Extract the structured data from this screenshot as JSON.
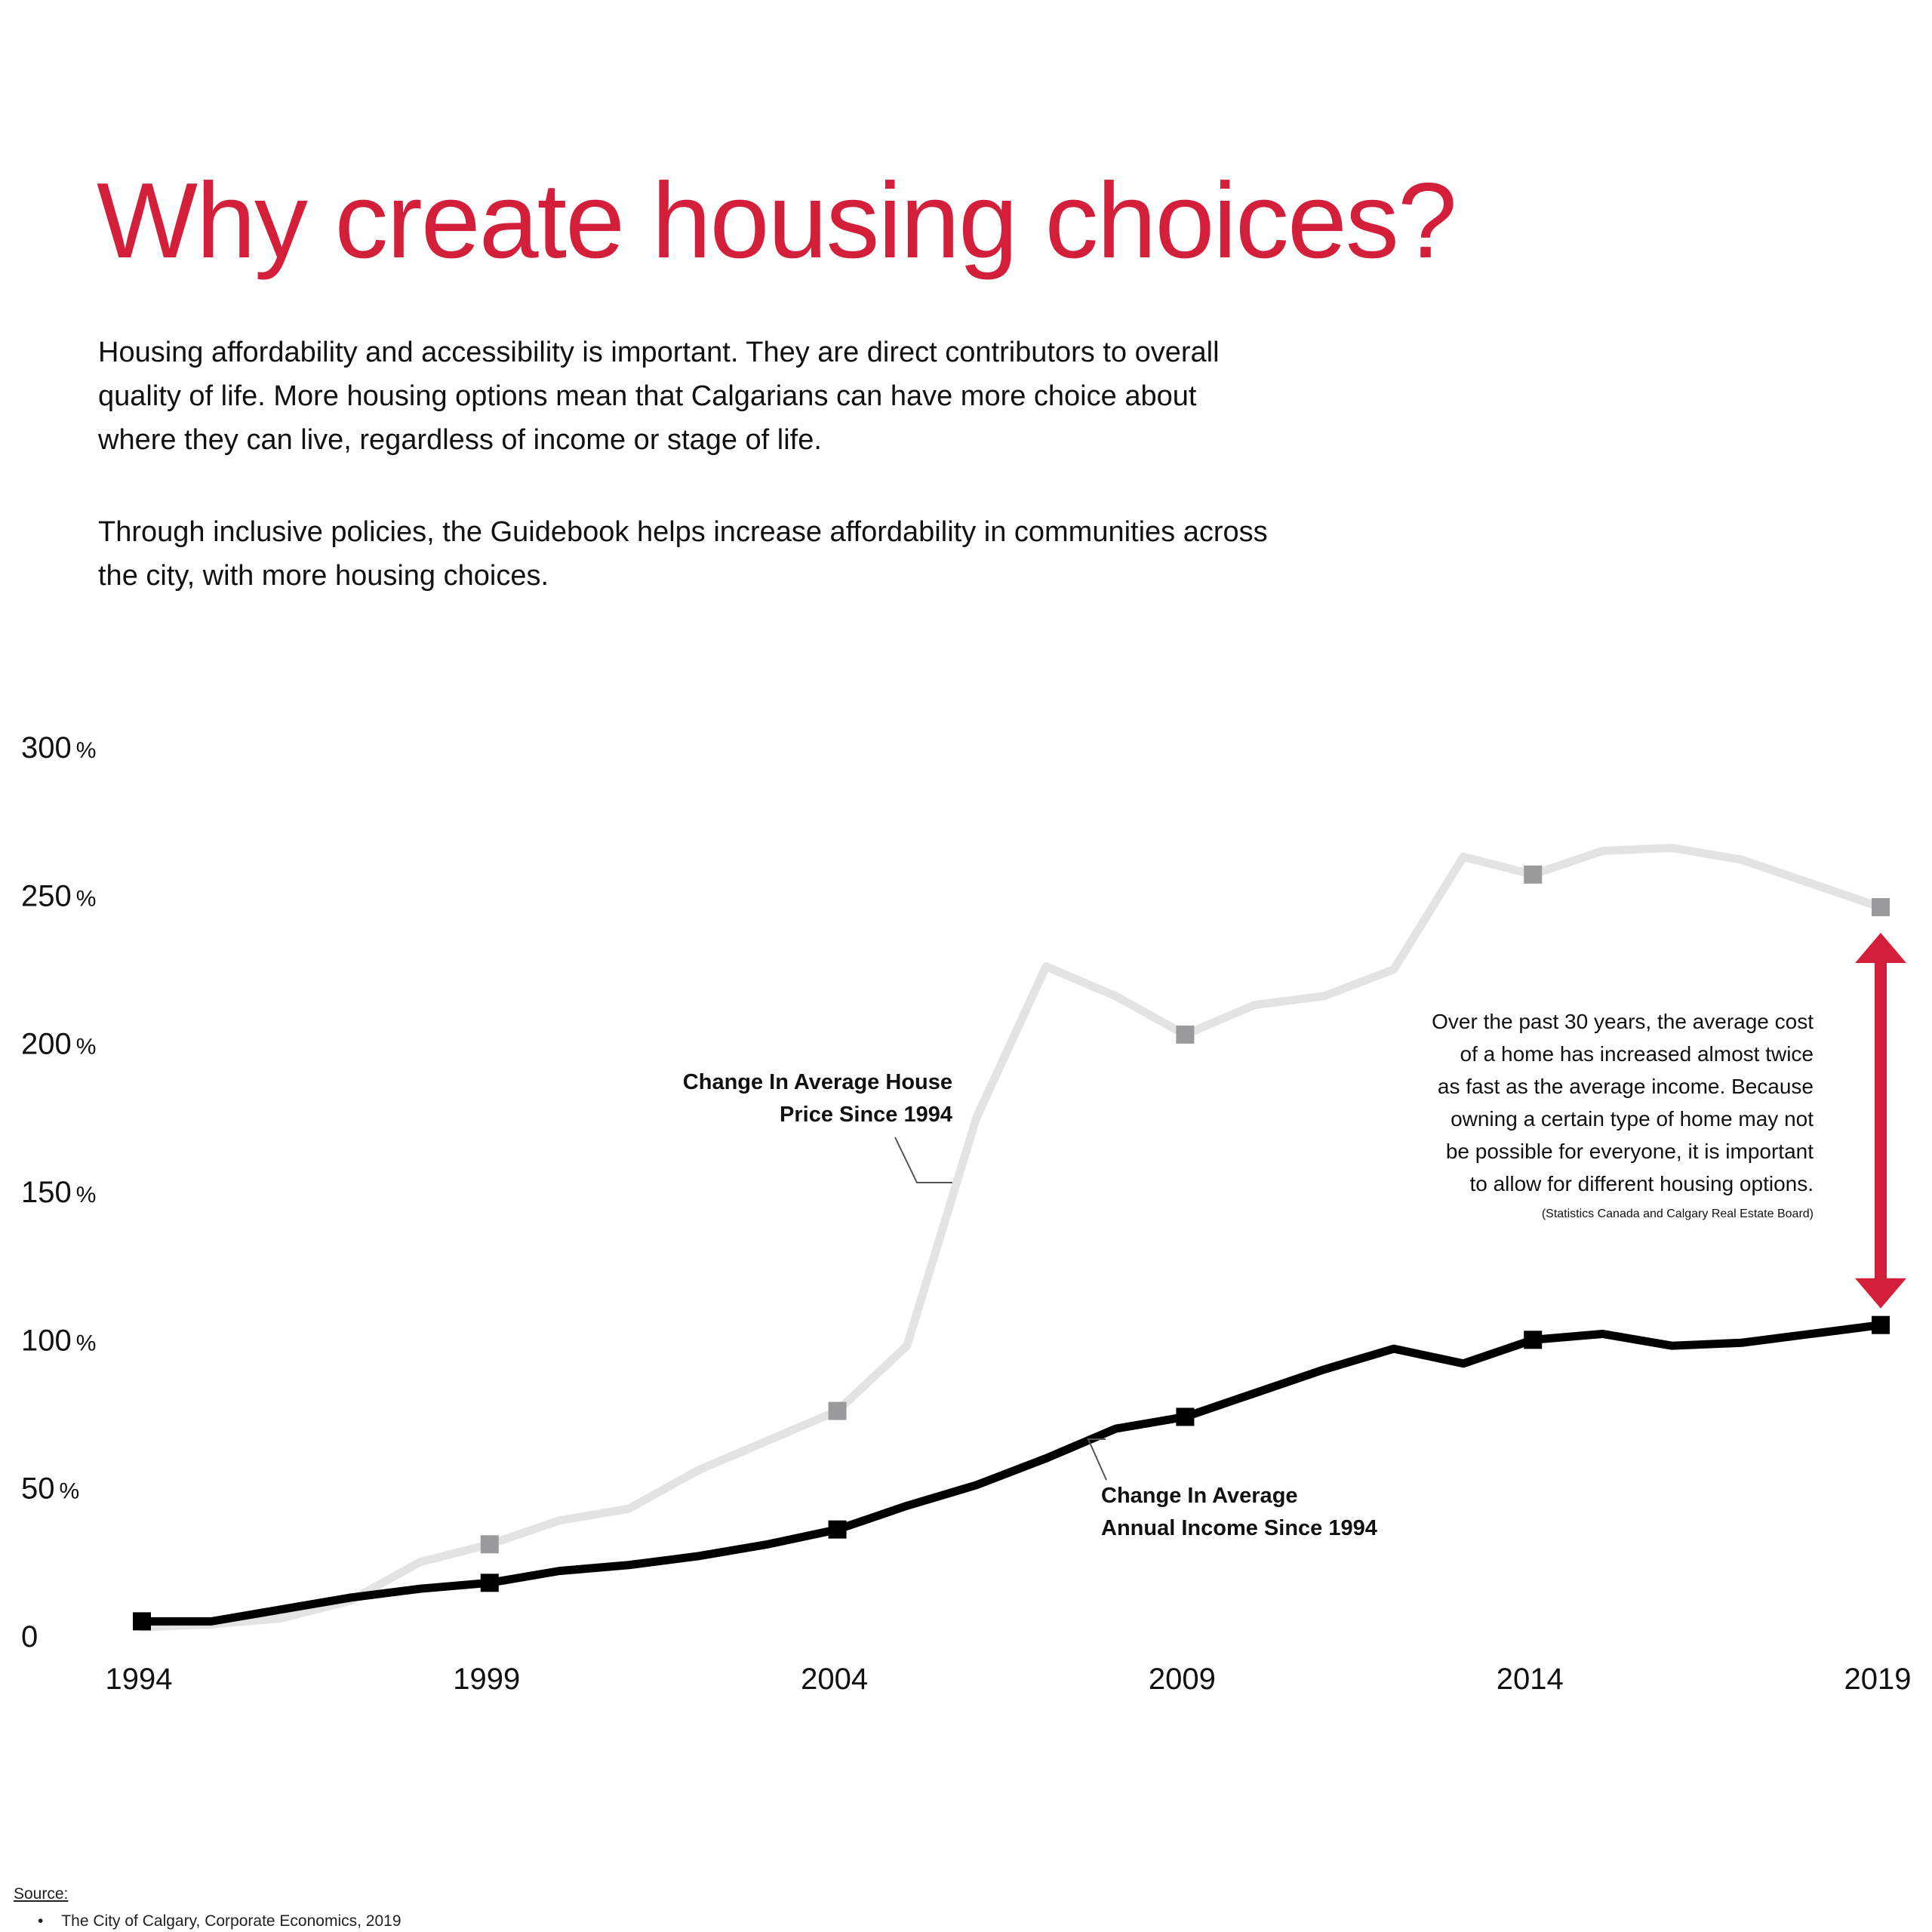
{
  "header": {
    "title": "Why create housing choices?",
    "paragraph1": "Housing affordability and accessibility is important. They are direct contributors to overall quality of life. More housing options mean that Calgarians can have more choice about where they can live, regardless of income or stage of life.",
    "paragraph2": "Through inclusive policies, the Guidebook helps increase affordability in communities across the city, with more housing choices."
  },
  "colors": {
    "title": "#d31f3a",
    "arrow": "#d31f3a",
    "house_line": "#e3e3e3",
    "house_marker": "#9a9a9c",
    "income_line": "#000000",
    "income_marker": "#000000",
    "leader": "#555555"
  },
  "chart_data": {
    "type": "line",
    "title": "",
    "xlabel": "",
    "ylabel": "",
    "x": [
      1994,
      1995,
      1996,
      1997,
      1998,
      1999,
      2000,
      2001,
      2002,
      2003,
      2004,
      2005,
      2006,
      2007,
      2008,
      2009,
      2010,
      2011,
      2012,
      2013,
      2014,
      2015,
      2016,
      2017,
      2018,
      2019
    ],
    "xlim": [
      1994,
      2019
    ],
    "ylim": [
      0,
      300
    ],
    "x_ticks": [
      "1994",
      "1999",
      "2004",
      "2009",
      "2014",
      "2019"
    ],
    "y_ticks": [
      {
        "value": 300,
        "num": "300",
        "unit": "%"
      },
      {
        "value": 250,
        "num": "250",
        "unit": "%"
      },
      {
        "value": 200,
        "num": "200",
        "unit": "%"
      },
      {
        "value": 150,
        "num": "150",
        "unit": "%"
      },
      {
        "value": 100,
        "num": "100",
        "unit": "%"
      },
      {
        "value": 50,
        "num": "50",
        "unit": "%"
      },
      {
        "value": 0,
        "num": "0",
        "unit": ""
      }
    ],
    "grid": false,
    "series": [
      {
        "name": "Change In Average House Price Since 1994",
        "label_lines": [
          "Change In Average House",
          "Price Since 1994"
        ],
        "values": [
          3,
          4,
          6,
          12,
          25,
          31,
          39,
          43,
          56,
          66,
          76,
          98,
          175,
          226,
          216,
          203,
          213,
          216,
          225,
          263,
          257,
          265,
          266,
          262,
          254,
          246
        ],
        "marker_years": [
          1999,
          2004,
          2009,
          2014,
          2019
        ]
      },
      {
        "name": "Change In Average Annual Income Since 1994",
        "label_lines": [
          "Change In Average",
          "Annual Income Since 1994"
        ],
        "values": [
          5,
          5,
          9,
          13,
          16,
          18,
          22,
          24,
          27,
          31,
          36,
          44,
          51,
          60,
          70,
          74,
          82,
          90,
          97,
          92,
          100,
          102,
          98,
          99,
          102,
          105
        ],
        "marker_years": [
          1994,
          1999,
          2004,
          2009,
          2014,
          2019
        ]
      }
    ],
    "annotation": {
      "lines": [
        "Over the past 30 years, the average cost",
        "of a home has increased almost twice",
        "as fast as the average income. Because",
        "owning a certain type of home may not",
        "be possible for everyone, it is important",
        "to allow for different housing options."
      ],
      "source": "(Statistics Canada and Calgary Real Estate Board)"
    }
  },
  "source": {
    "title": "Source:",
    "items": [
      "The City of Calgary, Corporate Economics, 2019"
    ]
  }
}
